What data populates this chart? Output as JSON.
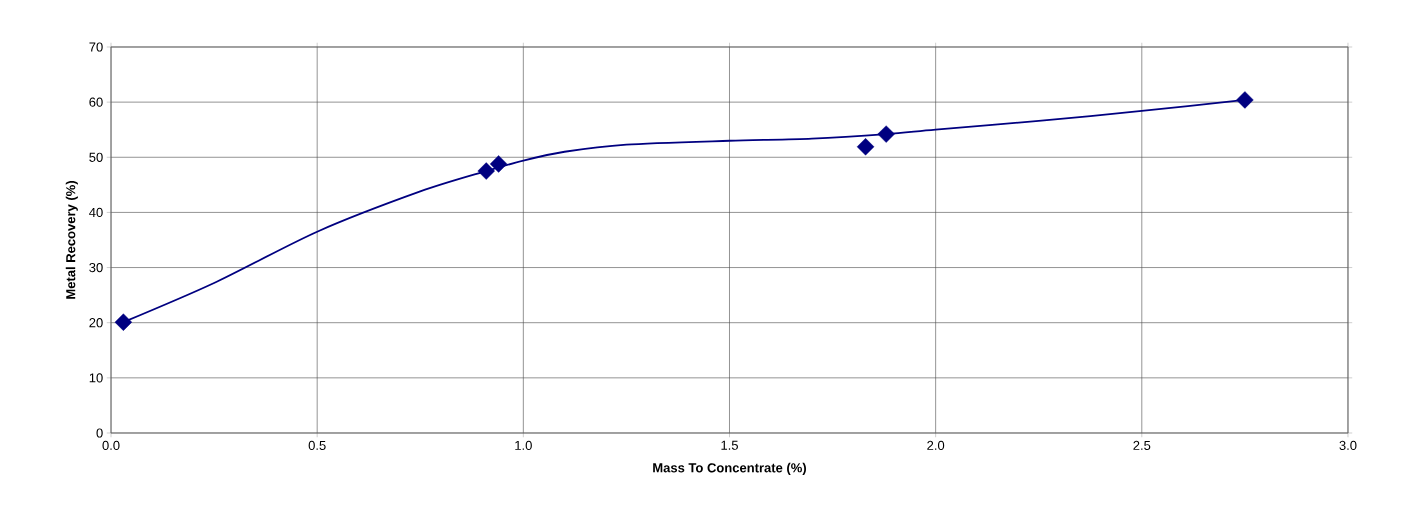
{
  "chart_data": {
    "type": "scatter",
    "xlabel": "Mass To Concentrate (%)",
    "ylabel": "Metal Recovery (%)",
    "xlim": [
      0,
      3
    ],
    "ylim": [
      0,
      70
    ],
    "xticks": [
      {
        "value": 0,
        "label": "0.0"
      },
      {
        "value": 0.5,
        "label": "0.5"
      },
      {
        "value": 1,
        "label": "1.0"
      },
      {
        "value": 1.5,
        "label": "1.5"
      },
      {
        "value": 2,
        "label": "2.0"
      },
      {
        "value": 2.5,
        "label": "2.5"
      },
      {
        "value": 3,
        "label": "3.0"
      }
    ],
    "yticks": [
      0,
      10,
      20,
      30,
      40,
      50,
      60,
      70
    ],
    "grid": true,
    "series": [
      {
        "type": "line",
        "color": "#000080",
        "marker": "none",
        "line_style": "solid",
        "x": [
          0.03,
          0.25,
          0.5,
          0.75,
          0.91,
          1.0,
          1.1,
          1.25,
          1.5,
          1.7,
          1.88,
          2.0,
          2.25,
          2.5,
          2.75
        ],
        "values": [
          20.1,
          27.2,
          36.5,
          43.8,
          47.5,
          49.4,
          51.0,
          52.3,
          53.0,
          53.4,
          54.2,
          55.0,
          56.6,
          58.4,
          60.4
        ]
      },
      {
        "color": "#000080",
        "marker": "diamond",
        "x": [
          0.03,
          0.91,
          0.94,
          1.83,
          1.88,
          2.75
        ],
        "values": [
          20.1,
          47.5,
          48.8,
          51.9,
          54.2,
          60.4
        ]
      }
    ]
  }
}
